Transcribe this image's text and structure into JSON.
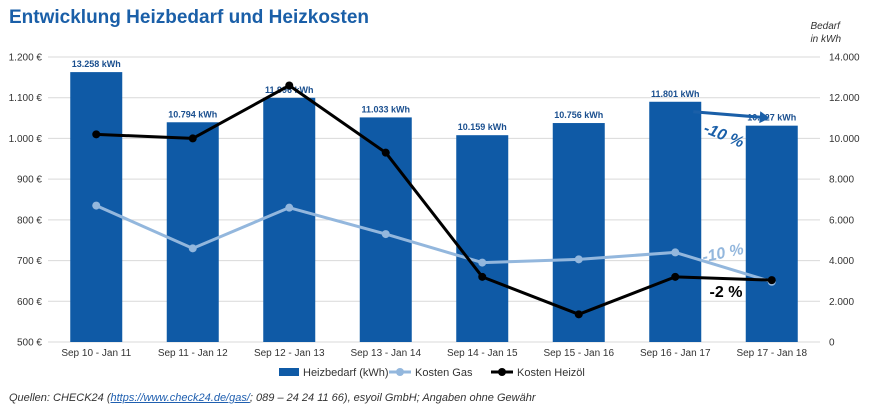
{
  "title": "Entwicklung Heizbedarf und Heizkosten",
  "right_axis_title": [
    "Bedarf",
    "in kWh"
  ],
  "source": {
    "prefix": "Quellen: CHECK24 (",
    "link": "https://www.check24.de/gas/",
    "suffix": "; 089 – 24 24 11 66), esyoil GmbH; Angaben ohne Gewähr"
  },
  "colors": {
    "bar": "#0f5aa6",
    "gas": "#93b7dd",
    "heizoel": "#000000",
    "title": "#1a5fa8"
  },
  "chart_data": {
    "type": "bar",
    "categories": [
      "Sep 10 - Jan 11",
      "Sep 11 - Jan 12",
      "Sep 12 - Jan 13",
      "Sep 13 - Jan 14",
      "Sep 14 - Jan 15",
      "Sep 15 - Jan 16",
      "Sep 16 - Jan 17",
      "Sep 17 - Jan 18"
    ],
    "series": [
      {
        "name": "Heizbedarf (kWh)",
        "kind": "bar",
        "axis": "right",
        "values": [
          13258,
          10794,
          11996,
          11033,
          10159,
          10756,
          11801,
          10627
        ],
        "labels": [
          "13.258 kWh",
          "10.794 kWh",
          "11.996 kWh",
          "11.033 kWh",
          "10.159 kWh",
          "10.756 kWh",
          "11.801 kWh",
          "10.627 kWh"
        ]
      },
      {
        "name": "Kosten Gas",
        "kind": "line",
        "axis": "left",
        "values": [
          835,
          730,
          830,
          765,
          695,
          703,
          720,
          648
        ]
      },
      {
        "name": "Kosten Heizöl",
        "kind": "line",
        "axis": "left",
        "values": [
          1010,
          1000,
          1130,
          965,
          660,
          568,
          660,
          652
        ]
      }
    ],
    "y_left": {
      "min": 500,
      "max": 1200,
      "ticks": [
        500,
        600,
        700,
        800,
        900,
        1000,
        1100,
        1200
      ],
      "tick_labels": [
        "500 €",
        "600 €",
        "700 €",
        "800 €",
        "900 €",
        "1.000 €",
        "1.100 €",
        "1.200 €"
      ]
    },
    "y_right": {
      "min": 0,
      "max": 14000,
      "ticks": [
        0,
        2000,
        4000,
        6000,
        8000,
        10000,
        12000,
        14000
      ],
      "tick_labels": [
        "0",
        "2.000",
        "4.000",
        "6.000",
        "8.000",
        "10.000",
        "12.000",
        "14.000"
      ]
    },
    "annotations": {
      "bar_change": "-10 %",
      "gas_change": "-10 %",
      "oil_change": "-2 %"
    },
    "legend_position": "bottom",
    "grid": true
  }
}
